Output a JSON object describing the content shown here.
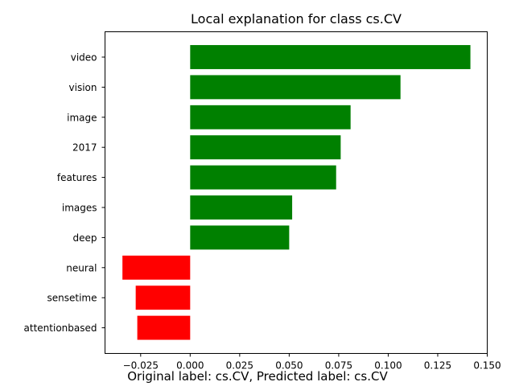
{
  "chart_data": {
    "type": "bar",
    "orientation": "horizontal",
    "title": "Local explanation for class cs.CV",
    "categories": [
      "video",
      "vision",
      "image",
      "2017",
      "features",
      "images",
      "deep",
      "neural",
      "sensetime",
      "attentionbased"
    ],
    "values": [
      0.1415,
      0.1062,
      0.081,
      0.076,
      0.0737,
      0.0515,
      0.05,
      -0.0342,
      -0.0275,
      -0.0267
    ],
    "xlim": [
      -0.043,
      0.15
    ],
    "xticks": [
      -0.025,
      0.0,
      0.025,
      0.05,
      0.075,
      0.1,
      0.125,
      0.15
    ],
    "xtick_labels": [
      "−0.025",
      "0.000",
      "0.025",
      "0.050",
      "0.075",
      "0.100",
      "0.125",
      "0.150"
    ],
    "positive_color": "#008000",
    "negative_color": "#ff0000",
    "grid": false,
    "xlabel": "",
    "ylabel": ""
  },
  "footer_text": "Original label: cs.CV, Predicted label: cs.CV"
}
